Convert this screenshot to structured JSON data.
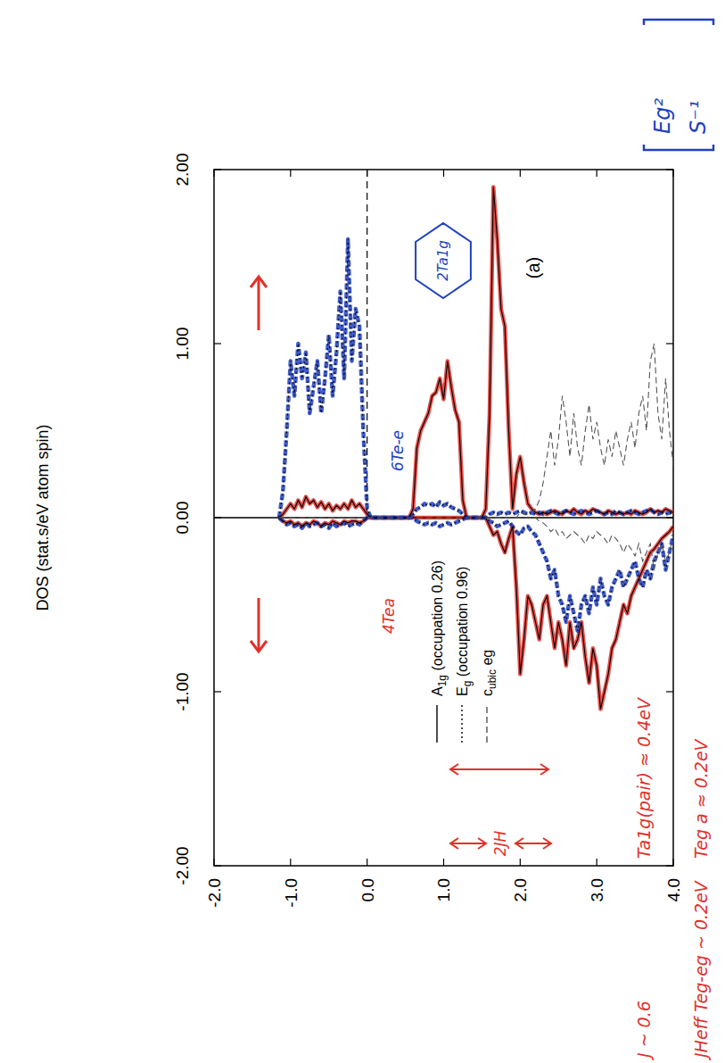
{
  "chart_data": {
    "type": "line",
    "ylabel": "DOS (stat.s/eV atom spin)",
    "panel_label": "(a)",
    "xlim": [
      -2,
      4
    ],
    "ylim": [
      -2,
      2
    ],
    "xticks": [
      {
        "value": -2,
        "label": "-2.0"
      },
      {
        "value": -1,
        "label": "-1.0"
      },
      {
        "value": 0,
        "label": "0.0"
      },
      {
        "value": 1,
        "label": "1.0"
      },
      {
        "value": 2,
        "label": "2.0"
      },
      {
        "value": 3,
        "label": "3.0"
      },
      {
        "value": 4,
        "label": "4.0"
      }
    ],
    "yticks": [
      {
        "value": -2,
        "label": "-2.00"
      },
      {
        "value": -1,
        "label": "-1.00"
      },
      {
        "value": 0,
        "label": "0.00"
      },
      {
        "value": 1,
        "label": "1.00"
      },
      {
        "value": 2,
        "label": "2.00"
      }
    ],
    "vlines": [
      0
    ],
    "hlines": [
      0
    ],
    "legend": "bottom",
    "x": [
      -1.15,
      -1.1,
      -1.05,
      -1.0,
      -0.95,
      -0.9,
      -0.85,
      -0.8,
      -0.75,
      -0.7,
      -0.65,
      -0.6,
      -0.55,
      -0.5,
      -0.45,
      -0.4,
      -0.35,
      -0.3,
      -0.25,
      -0.2,
      -0.15,
      -0.1,
      -0.05,
      0.0,
      0.05,
      0.1,
      0.15,
      0.2,
      0.25,
      0.3,
      0.35,
      0.4,
      0.45,
      0.5,
      0.55,
      0.6,
      0.65,
      0.7,
      0.75,
      0.8,
      0.85,
      0.9,
      0.95,
      1.0,
      1.05,
      1.1,
      1.15,
      1.2,
      1.25,
      1.3,
      1.35,
      1.4,
      1.45,
      1.5,
      1.55,
      1.6,
      1.65,
      1.7,
      1.75,
      1.8,
      1.85,
      1.9,
      1.95,
      2.0,
      2.05,
      2.1,
      2.15,
      2.2,
      2.25,
      2.3,
      2.35,
      2.4,
      2.45,
      2.5,
      2.55,
      2.6,
      2.65,
      2.7,
      2.75,
      2.8,
      2.85,
      2.9,
      2.95,
      3.0,
      3.05,
      3.1,
      3.15,
      3.2,
      3.25,
      3.3,
      3.35,
      3.4,
      3.45,
      3.5,
      3.55,
      3.6,
      3.65,
      3.7,
      3.75,
      3.8,
      3.85,
      3.9,
      3.95,
      4.0
    ],
    "series": [
      {
        "name": "A1g (occupation 0.26)",
        "color": "#e0312a",
        "line_style": "solid",
        "values": [
          0,
          0.02,
          0.05,
          0.08,
          0.05,
          0.1,
          0.06,
          0.12,
          0.08,
          0.1,
          0.06,
          0.09,
          0.05,
          0.08,
          0.04,
          0.07,
          0.05,
          0.08,
          0.05,
          0.1,
          0.06,
          0.08,
          0.05,
          0.02,
          0,
          0,
          0,
          0,
          0,
          0,
          0,
          0,
          0,
          0,
          0,
          0.05,
          0.4,
          0.5,
          0.55,
          0.6,
          0.7,
          0.72,
          0.8,
          0.68,
          0.9,
          0.75,
          0.62,
          0.55,
          0.1,
          0,
          0,
          0,
          0,
          0,
          0.05,
          0.6,
          1.9,
          1.6,
          1.2,
          1.1,
          0.5,
          0.05,
          0.25,
          0.35,
          0.2,
          0.08,
          0.05,
          0.03,
          0.02,
          0.03,
          0.02,
          0.03,
          0.04,
          0.03,
          0.02,
          0.04,
          0.03,
          0.05,
          0.03,
          0.02,
          0.04,
          0.03,
          0.05,
          0.04,
          0.03,
          0.02,
          0.04,
          0.03,
          0.02,
          0.03,
          0.02,
          0.03,
          0.02,
          0.04,
          0.03,
          0.02,
          0.03,
          0.05,
          0.03,
          0.04,
          0.03,
          0.05,
          0.04,
          0.03
        ],
        "values_down": [
          0,
          -0.02,
          -0.03,
          -0.02,
          -0.04,
          -0.03,
          -0.05,
          -0.03,
          -0.04,
          -0.02,
          -0.03,
          -0.05,
          -0.03,
          -0.04,
          -0.02,
          -0.03,
          -0.04,
          -0.02,
          -0.03,
          -0.02,
          -0.02,
          -0.03,
          -0.02,
          0,
          0,
          0,
          0,
          0,
          0,
          0,
          0,
          0,
          0,
          0,
          0,
          0,
          0,
          0,
          0,
          0,
          0,
          0,
          0,
          0,
          0,
          0,
          0,
          0,
          0,
          0,
          0,
          0,
          0,
          0,
          0,
          -0.05,
          -0.1,
          -0.08,
          -0.15,
          -0.2,
          -0.12,
          -0.05,
          -0.4,
          -0.9,
          -0.7,
          -0.45,
          -0.5,
          -0.6,
          -0.7,
          -0.5,
          -0.45,
          -0.6,
          -0.75,
          -0.6,
          -0.7,
          -0.85,
          -0.6,
          -0.75,
          -0.7,
          -0.6,
          -0.8,
          -0.95,
          -0.75,
          -0.85,
          -1.1,
          -1.0,
          -0.9,
          -0.75,
          -0.7,
          -0.6,
          -0.5,
          -0.55,
          -0.45,
          -0.4,
          -0.35,
          -0.3,
          -0.25,
          -0.2,
          -0.18,
          -0.15,
          -0.12,
          -0.1,
          -0.08,
          -0.05
        ]
      },
      {
        "name": "Eg (occupation 0.96)",
        "color": "#2040c0",
        "line_style": "dotted",
        "values": [
          0,
          0.15,
          0.5,
          0.9,
          0.7,
          1.0,
          0.8,
          0.95,
          0.6,
          0.75,
          0.9,
          0.6,
          0.8,
          1.05,
          0.7,
          0.95,
          1.3,
          0.8,
          1.6,
          0.9,
          1.2,
          1.1,
          0.5,
          0.05,
          0,
          0,
          0,
          0,
          0,
          0,
          0,
          0,
          0,
          0,
          0,
          0.02,
          0.05,
          0.06,
          0.08,
          0.07,
          0.08,
          0.06,
          0.09,
          0.07,
          0.08,
          0.06,
          0.05,
          0.04,
          0.02,
          0,
          0,
          0,
          0,
          0,
          0,
          0.02,
          0.03,
          0.02,
          0.03,
          0.02,
          0.03,
          0.02,
          0.03,
          0.04,
          0.03,
          0.02,
          0.03,
          0.02,
          0.03,
          0.02,
          0.03,
          0.04,
          0.03,
          0.02,
          0.03,
          0.04,
          0.03,
          0.02,
          0.03,
          0.04,
          0.03,
          0.02,
          0.03,
          0.04,
          0.03,
          0.02,
          0.03,
          0.02,
          0.04,
          0.03,
          0.02,
          0.03,
          0.04,
          0.03,
          0.02,
          0.03,
          0.04,
          0.05,
          0.03,
          0.02,
          0.03,
          0.02,
          0.03,
          0.02
        ],
        "values_down": [
          0,
          -0.02,
          -0.04,
          -0.03,
          -0.05,
          -0.04,
          -0.06,
          -0.03,
          -0.05,
          -0.04,
          -0.03,
          -0.05,
          -0.04,
          -0.06,
          -0.03,
          -0.05,
          -0.04,
          -0.03,
          -0.05,
          -0.04,
          -0.03,
          -0.04,
          -0.02,
          0,
          0,
          0,
          0,
          0,
          0,
          0,
          0,
          0,
          0,
          0,
          0,
          0,
          -0.02,
          -0.03,
          -0.04,
          -0.03,
          -0.04,
          -0.03,
          -0.05,
          -0.04,
          -0.03,
          -0.04,
          -0.03,
          -0.02,
          -0.01,
          0,
          0,
          0,
          0,
          0,
          0,
          -0.02,
          -0.03,
          -0.05,
          -0.04,
          -0.03,
          -0.02,
          -0.05,
          -0.08,
          -0.1,
          -0.06,
          -0.05,
          -0.08,
          -0.1,
          -0.15,
          -0.2,
          -0.25,
          -0.35,
          -0.3,
          -0.45,
          -0.5,
          -0.6,
          -0.45,
          -0.55,
          -0.65,
          -0.5,
          -0.45,
          -0.55,
          -0.4,
          -0.5,
          -0.35,
          -0.45,
          -0.5,
          -0.4,
          -0.35,
          -0.3,
          -0.4,
          -0.35,
          -0.3,
          -0.25,
          -0.35,
          -0.4,
          -0.3,
          -0.35,
          -0.25,
          -0.2,
          -0.15,
          -0.3,
          -0.2,
          -0.1
        ]
      },
      {
        "name": "cubic eg",
        "color": "#555555",
        "line_style": "dashed",
        "values": [
          0,
          0,
          0,
          0,
          0,
          0,
          0,
          0,
          0,
          0,
          0,
          0,
          0,
          0,
          0,
          0,
          0,
          0,
          0,
          0,
          0,
          0,
          0,
          0,
          0,
          0,
          0,
          0,
          0,
          0,
          0,
          0,
          0,
          0,
          0,
          0,
          0,
          0,
          0,
          0,
          0,
          0,
          0,
          0,
          0,
          0,
          0,
          0,
          0,
          0,
          0,
          0,
          0,
          0,
          0,
          0,
          0,
          0,
          0,
          0,
          0,
          0,
          0,
          0.03,
          0.02,
          0.02,
          0.03,
          0.05,
          0.1,
          0.2,
          0.35,
          0.5,
          0.3,
          0.45,
          0.7,
          0.55,
          0.35,
          0.6,
          0.4,
          0.3,
          0.5,
          0.65,
          0.45,
          0.55,
          0.4,
          0.3,
          0.45,
          0.35,
          0.5,
          0.4,
          0.3,
          0.45,
          0.55,
          0.4,
          0.6,
          0.7,
          0.5,
          0.9,
          1.0,
          0.6,
          0.45,
          0.8,
          0.5,
          0.3
        ],
        "values_down": [
          0,
          0,
          0,
          0,
          0,
          0,
          0,
          0,
          0,
          0,
          0,
          0,
          0,
          0,
          0,
          0,
          0,
          0,
          0,
          0,
          0,
          0,
          0,
          0,
          0,
          0,
          0,
          0,
          0,
          0,
          0,
          0,
          0,
          0,
          0,
          0,
          0,
          0,
          0,
          0,
          0,
          0,
          0,
          0,
          0,
          0,
          0,
          0,
          0,
          0,
          0,
          0,
          0,
          0,
          0,
          0,
          0,
          0,
          0,
          0,
          0,
          0,
          0,
          0,
          0,
          0,
          0,
          0,
          -0.02,
          -0.03,
          -0.05,
          -0.08,
          -0.06,
          -0.1,
          -0.08,
          -0.12,
          -0.1,
          -0.08,
          -0.1,
          -0.12,
          -0.15,
          -0.1,
          -0.12,
          -0.08,
          -0.1,
          -0.12,
          -0.15,
          -0.1,
          -0.12,
          -0.15,
          -0.2,
          -0.15,
          -0.18,
          -0.22,
          -0.15,
          -0.25,
          -0.2,
          -0.15,
          -0.3,
          -0.2,
          -0.15,
          -0.25,
          -0.2,
          -0.1
        ]
      }
    ],
    "annotations": [
      {
        "text": "2Ta1g",
        "color": "#2040c0"
      },
      {
        "text": "6Te-e",
        "color": "#2040c0"
      },
      {
        "text": "4Tea",
        "color": "#e0312a"
      },
      {
        "text": "2JH",
        "color": "#e0312a"
      },
      {
        "text": "J ~ 0.6",
        "color": "#e0312a"
      },
      {
        "text": "Ta1g(pair) ≈ 0.4eV",
        "color": "#e0312a"
      },
      {
        "text": "JHeff Teg-eg ~ 0.2eV",
        "color": "#e0312a"
      },
      {
        "text": "Teg a ≈ 0.2eV",
        "color": "#e0312a"
      },
      {
        "text": "Eg²",
        "color": "#2040c0"
      },
      {
        "text": "S⁻¹",
        "color": "#2040c0"
      }
    ]
  }
}
